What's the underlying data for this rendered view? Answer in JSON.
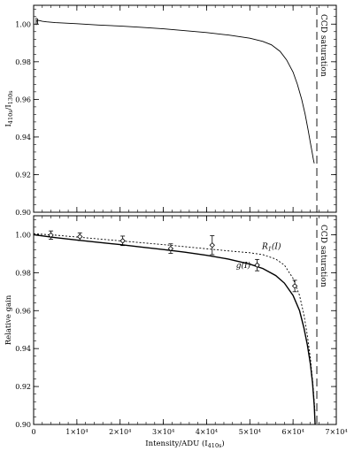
{
  "chart_data": [
    {
      "type": "line",
      "panel": "top",
      "ylabel": {
        "base": "I",
        "sub1": "410s",
        "mid": "/I",
        "sub2": "130s"
      },
      "xlim": [
        0,
        70000
      ],
      "ylim": [
        0.9,
        1.01
      ],
      "yticks": [
        "0.90",
        "0.92",
        "0.94",
        "0.96",
        "0.98",
        "1.00"
      ],
      "ytick_values": [
        0.9,
        0.92,
        0.94,
        0.96,
        0.98,
        1.0
      ],
      "grid": false,
      "series": [
        {
          "style": "solid",
          "x": [
            700,
            1000,
            1500,
            2000,
            3000,
            5000,
            10000,
            15000,
            20000,
            25000,
            30000,
            35000,
            40000,
            45000,
            50000,
            53000,
            55000,
            57000,
            58500,
            60000,
            61000,
            62000,
            62800,
            63500,
            64000,
            64400,
            64700,
            64900
          ],
          "y": [
            1.0015,
            1.002,
            1.0018,
            1.0015,
            1.0012,
            1.0008,
            1.0002,
            0.9995,
            0.999,
            0.9983,
            0.9975,
            0.9965,
            0.9955,
            0.9942,
            0.9925,
            0.9908,
            0.989,
            0.9855,
            0.981,
            0.9745,
            0.968,
            0.96,
            0.952,
            0.9435,
            0.937,
            0.932,
            0.928,
            0.926
          ]
        }
      ],
      "reference_line": {
        "x": 65500,
        "label": "CCD saturation",
        "style": "dashed"
      }
    },
    {
      "type": "line",
      "panel": "bottom",
      "xlabel": {
        "base": "Intensity/ADU (I",
        "sub": "410s",
        "tail": ")"
      },
      "ylabel": "Relative gain",
      "xlim": [
        0,
        70000
      ],
      "ylim": [
        0.9,
        1.01
      ],
      "xticks": [
        "0",
        "1×10⁴",
        "2×10⁴",
        "3×10⁴",
        "4×10⁴",
        "5×10⁴",
        "6×10⁴",
        "7×10⁴"
      ],
      "xtick_values": [
        0,
        10000,
        20000,
        30000,
        40000,
        50000,
        60000,
        70000
      ],
      "yticks": [
        "0.90",
        "0.92",
        "0.94",
        "0.96",
        "0.98",
        "1.00"
      ],
      "ytick_values": [
        0.9,
        0.92,
        0.94,
        0.96,
        0.98,
        1.0
      ],
      "grid": false,
      "series": [
        {
          "name": "g(I)",
          "style": "solid",
          "x": [
            0,
            5000,
            10000,
            15000,
            20000,
            25000,
            30000,
            35000,
            40000,
            45000,
            50000,
            53000,
            56000,
            58000,
            60000,
            61500,
            62500,
            63300,
            64000,
            64500,
            64900,
            65100
          ],
          "y": [
            1.0,
            0.9985,
            0.9972,
            0.996,
            0.9948,
            0.9935,
            0.9922,
            0.9908,
            0.9892,
            0.9872,
            0.9845,
            0.9822,
            0.9785,
            0.9745,
            0.968,
            0.96,
            0.951,
            0.942,
            0.932,
            0.922,
            0.91,
            0.9
          ]
        },
        {
          "name": "R_1(I)",
          "label_base": "R",
          "label_sub": "1",
          "label_tail": "(I)",
          "style": "dotted",
          "x": [
            0,
            5000,
            10000,
            15000,
            20000,
            25000,
            30000,
            35000,
            40000,
            45000,
            50000,
            53000,
            56000,
            58000,
            60000,
            61500,
            62500,
            63300,
            64000,
            64600,
            65100
          ],
          "y": [
            1.0005,
            0.9998,
            0.9988,
            0.9978,
            0.9968,
            0.9958,
            0.9948,
            0.9937,
            0.9926,
            0.9915,
            0.9905,
            0.9895,
            0.9872,
            0.984,
            0.977,
            0.968,
            0.958,
            0.947,
            0.935,
            0.921,
            0.906
          ]
        }
      ],
      "data_points": {
        "x": [
          4000,
          10700,
          20600,
          31700,
          41300,
          51700,
          60400
        ],
        "y": [
          0.9998,
          0.999,
          0.9968,
          0.9927,
          0.9945,
          0.984,
          0.973
        ],
        "yerr": [
          0.0022,
          0.002,
          0.0025,
          0.0025,
          0.005,
          0.003,
          0.003
        ]
      },
      "reference_line": {
        "x": 65500,
        "label": "CCD saturation",
        "style": "dashed"
      }
    }
  ]
}
